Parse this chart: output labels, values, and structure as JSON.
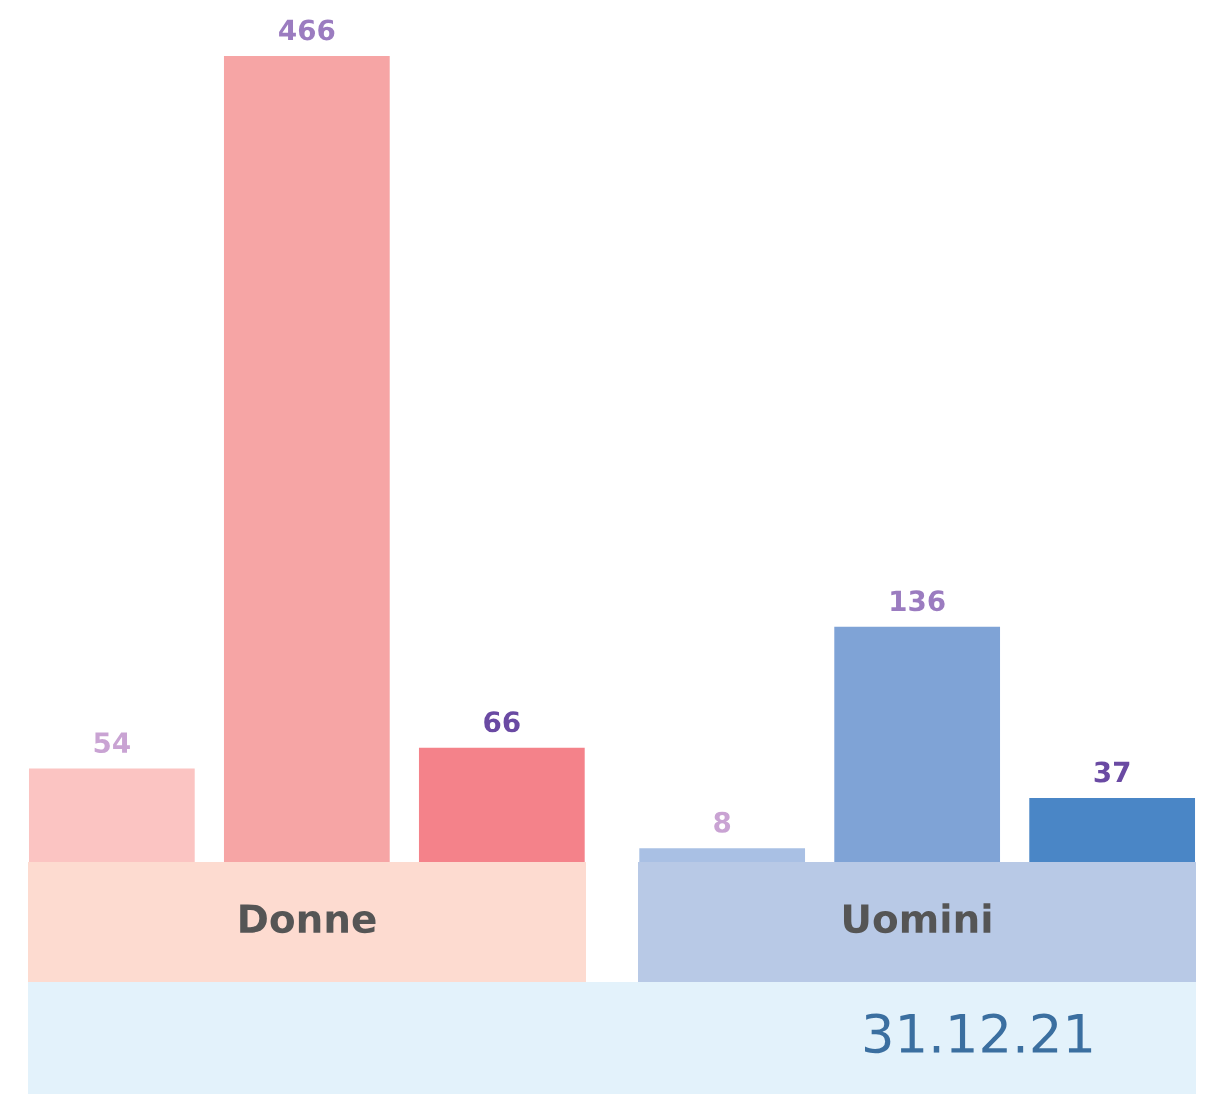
{
  "chart_data": {
    "type": "bar",
    "categories": [
      null,
      null,
      null,
      null,
      null,
      null
    ],
    "values": [
      54,
      466,
      66,
      8,
      136,
      37
    ],
    "colors": [
      "#fbc4c2",
      "#f6a5a5",
      "#f4828a",
      "#a9c0e4",
      "#7fa3d6",
      "#4a86c6"
    ],
    "data_labels": true,
    "annotations": [
      "Donne",
      "Uomini",
      "31.12.21"
    ]
  }
}
